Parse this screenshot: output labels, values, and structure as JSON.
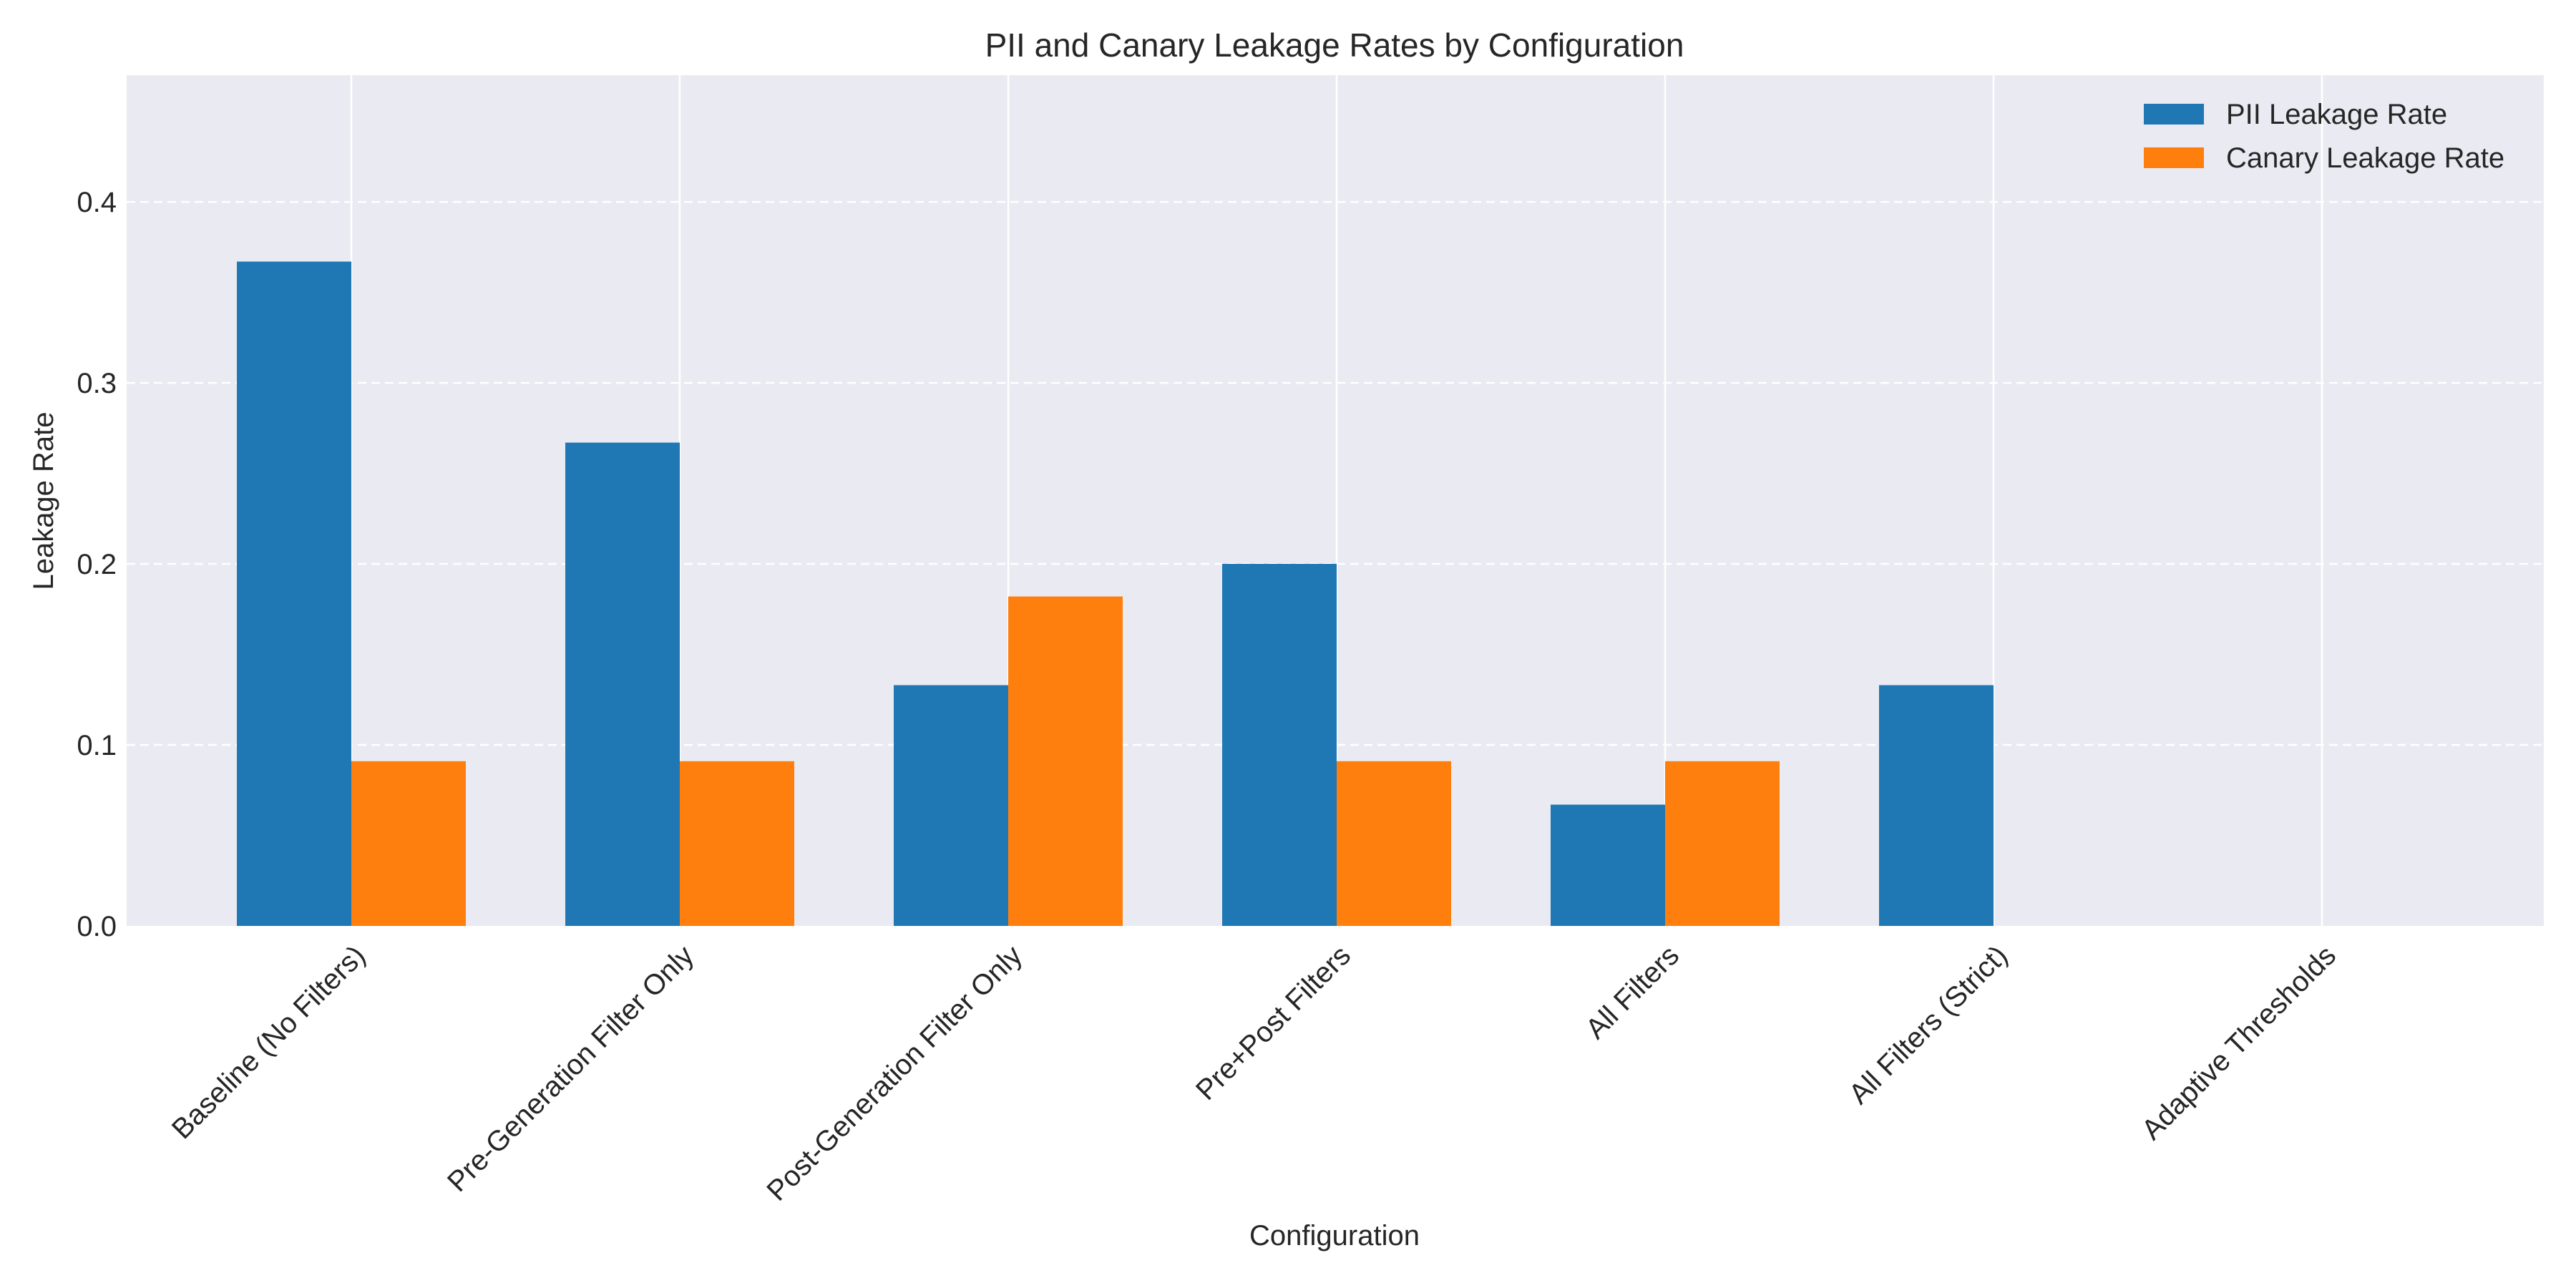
{
  "chart_data": {
    "type": "bar",
    "title": "PII and Canary Leakage Rates by Configuration",
    "xlabel": "Configuration",
    "ylabel": "Leakage Rate",
    "categories": [
      "Baseline (No Filters)",
      "Pre-Generation Filter Only",
      "Post-Generation Filter Only",
      "Pre+Post Filters",
      "All Filters",
      "All Filters (Strict)",
      "Adaptive Thresholds"
    ],
    "series": [
      {
        "name": "PII Leakage Rate",
        "color": "#1f77b4",
        "values": [
          0.367,
          0.267,
          0.133,
          0.2,
          0.067,
          0.133,
          0.0
        ]
      },
      {
        "name": "Canary Leakage Rate",
        "color": "#ff7f0e",
        "values": [
          0.091,
          0.091,
          0.182,
          0.091,
          0.091,
          0.0,
          0.0
        ]
      }
    ],
    "ylim": [
      0,
      0.47
    ],
    "yticks": [
      "0.0",
      "0.1",
      "0.2",
      "0.3",
      "0.4"
    ],
    "grid": true,
    "legend_position": "top-right",
    "plot_background": "#eaeaf2"
  }
}
